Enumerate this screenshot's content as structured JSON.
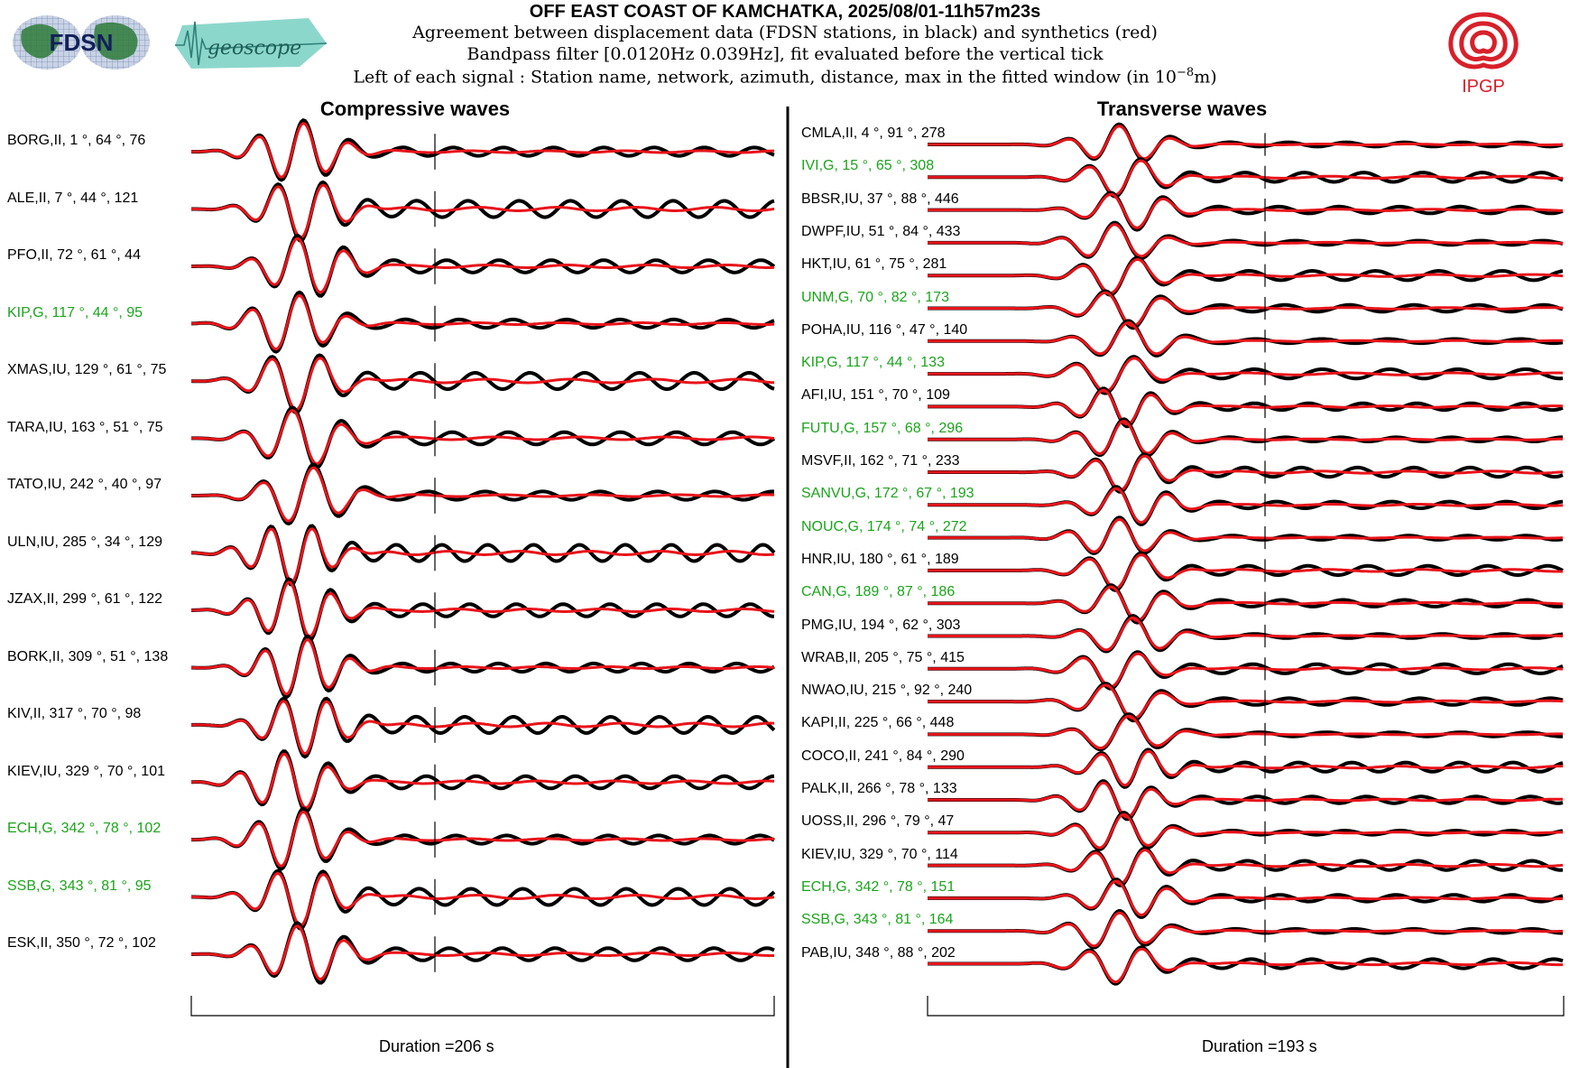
{
  "header": {
    "title": "OFF EAST COAST OF KAMCHATKA, 2025/08/01-11h57m23s",
    "line1": "Agreement between displacement data (FDSN stations, in black) and synthetics (red)",
    "line2": "Bandpass filter [0.0120Hz 0.039Hz], fit evaluated before the vertical tick",
    "line3_prefix": "Left of each signal : Station name, network, azimuth, distance, max in the fitted window (in 10",
    "line3_exp": "−8",
    "line3_suffix": "m)"
  },
  "logos": {
    "fdsn": "FDSN",
    "geoscope": "geoscope",
    "ipgp": "IPGP"
  },
  "colors": {
    "data": "#000000",
    "synthetic": "#e8141a",
    "highlight_label": "#1aa51a"
  },
  "chart_data": [
    {
      "type": "line",
      "title": "Compressive waves",
      "duration_label": "Duration =206 s",
      "duration_s": 206,
      "series_legend": {
        "data": "black",
        "synthetics": "red"
      },
      "stations": [
        {
          "label": "BORG,II, 1 °, 64 °, 76",
          "green": false
        },
        {
          "label": "ALE,II, 7 °, 44 °, 121",
          "green": false
        },
        {
          "label": "PFO,II, 72 °, 61 °, 44",
          "green": false
        },
        {
          "label": "KIP,G, 117 °, 44 °, 95",
          "green": true
        },
        {
          "label": "XMAS,IU, 129 °, 61 °, 75",
          "green": false
        },
        {
          "label": "TARA,IU, 163 °, 51 °, 75",
          "green": false
        },
        {
          "label": "TATO,IU, 242 °, 40 °, 97",
          "green": false
        },
        {
          "label": "ULN,IU, 285 °, 34 °, 129",
          "green": false
        },
        {
          "label": "JZAX,II, 299 °, 61 °, 122",
          "green": false
        },
        {
          "label": "BORK,II, 309 °, 51 °, 138",
          "green": false
        },
        {
          "label": "KIV,II, 317 °, 70 °, 98",
          "green": false
        },
        {
          "label": "KIEV,IU, 329 °, 70 °, 101",
          "green": false
        },
        {
          "label": "ECH,G, 342 °, 78 °, 102",
          "green": true
        },
        {
          "label": "SSB,G, 343 °, 81 °, 95",
          "green": true
        },
        {
          "label": "ESK,II, 350 °, 72 °, 102",
          "green": false
        }
      ]
    },
    {
      "type": "line",
      "title": "Transverse waves",
      "duration_label": "Duration =193 s",
      "duration_s": 193,
      "series_legend": {
        "data": "black",
        "synthetics": "red"
      },
      "stations": [
        {
          "label": "CMLA,II, 4 °, 91 °, 278",
          "green": false
        },
        {
          "label": "IVI,G, 15 °, 65 °, 308",
          "green": true
        },
        {
          "label": "BBSR,IU, 37 °, 88 °, 446",
          "green": false
        },
        {
          "label": "DWPF,IU, 51 °, 84 °, 433",
          "green": false
        },
        {
          "label": "HKT,IU, 61 °, 75 °, 281",
          "green": false
        },
        {
          "label": "UNM,G, 70 °, 82 °, 173",
          "green": true
        },
        {
          "label": "POHA,IU, 116 °, 47 °, 140",
          "green": false
        },
        {
          "label": "KIP,G, 117 °, 44 °, 133",
          "green": true
        },
        {
          "label": "AFI,IU, 151 °, 70 °, 109",
          "green": false
        },
        {
          "label": "FUTU,G, 157 °, 68 °, 296",
          "green": true
        },
        {
          "label": "MSVF,II, 162 °, 71 °, 233",
          "green": false
        },
        {
          "label": "SANVU,G, 172 °, 67 °, 193",
          "green": true
        },
        {
          "label": "NOUC,G, 174 °, 74 °, 272",
          "green": true
        },
        {
          "label": "HNR,IU, 180 °, 61 °, 189",
          "green": false
        },
        {
          "label": "CAN,G, 189 °, 87 °, 186",
          "green": true
        },
        {
          "label": "PMG,IU, 194 °, 62 °, 303",
          "green": false
        },
        {
          "label": "WRAB,II, 205 °, 75 °, 415",
          "green": false
        },
        {
          "label": "NWAO,IU, 215 °, 92 °, 240",
          "green": false
        },
        {
          "label": "KAPI,II, 225 °, 66 °, 448",
          "green": false
        },
        {
          "label": "COCO,II, 241 °, 84 °, 290",
          "green": false
        },
        {
          "label": "PALK,II, 266 °, 78 °, 133",
          "green": false
        },
        {
          "label": "UOSS,II, 296 °, 79 °, 47",
          "green": false
        },
        {
          "label": "KIEV,IU, 329 °, 70 °, 114",
          "green": false
        },
        {
          "label": "ECH,G, 342 °, 78 °, 151",
          "green": true
        },
        {
          "label": "SSB,G, 343 °, 81 °, 164",
          "green": true
        },
        {
          "label": "PAB,IU, 348 °, 88 °, 202",
          "green": false
        }
      ]
    }
  ]
}
